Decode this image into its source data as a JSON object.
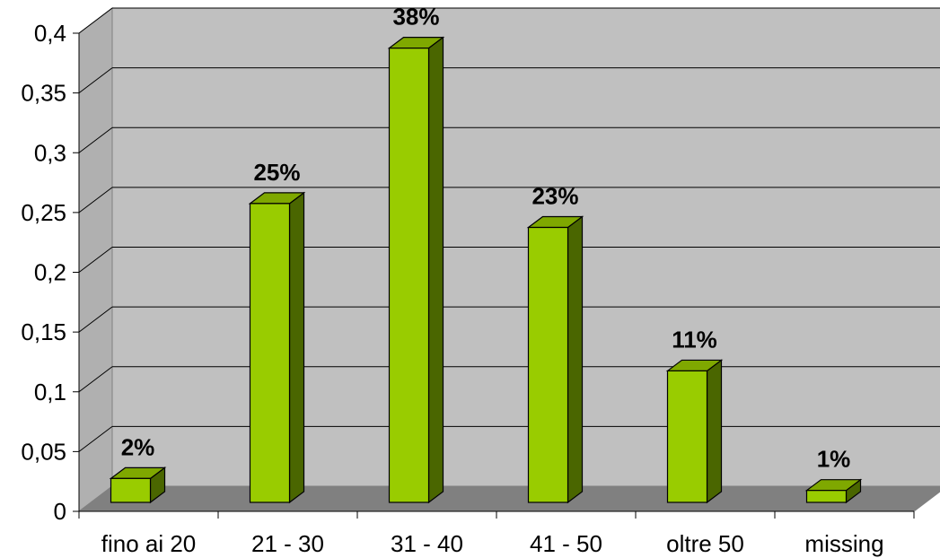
{
  "chart_data": {
    "type": "bar",
    "title": "",
    "xlabel": "",
    "ylabel": "",
    "categories": [
      "fino ai 20",
      "21 - 30",
      "31 - 40",
      "41 -  50",
      "oltre 50",
      "missing"
    ],
    "values": [
      0.02,
      0.25,
      0.38,
      0.23,
      0.11,
      0.01
    ],
    "data_labels": [
      "2%",
      "25%",
      "38%",
      "23%",
      "11%",
      "1%"
    ],
    "ylim": [
      0,
      0.4
    ],
    "y_ticks": [
      "0",
      "0,05",
      "0,1",
      "0,15",
      "0,2",
      "0,25",
      "0,3",
      "0,35",
      "0,4"
    ],
    "grid": true,
    "legend": "none",
    "style": "3d-column"
  },
  "colors": {
    "bar_front": "#99cc00",
    "bar_top": "#7fa800",
    "bar_side": "#4a6600",
    "back_wall": "#c0c0c0",
    "side_wall": "#b0b0b0",
    "floor": "#808080",
    "grid_line": "#000000"
  }
}
